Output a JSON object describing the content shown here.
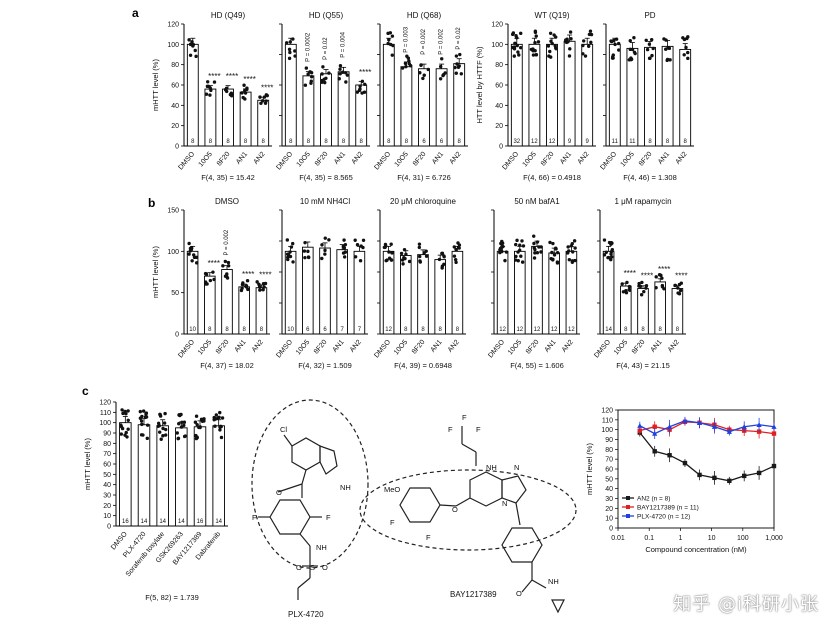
{
  "panel_labels": [
    "a",
    "b",
    "c"
  ],
  "structure_names": [
    "PLX-4720",
    "BAY1217389"
  ],
  "watermark": "知乎 @i科研小张",
  "chart_data": [
    {
      "type": "bar",
      "panel": "a",
      "title": "HD (Q49)",
      "ylabel": "mHTT level (%)",
      "ylim": [
        0,
        120
      ],
      "yticks": [
        0,
        20,
        40,
        60,
        80,
        100,
        120
      ],
      "categories": [
        "DMSO",
        "10O5",
        "8F20",
        "AN1",
        "AN2"
      ],
      "values": [
        100,
        56,
        56,
        53,
        45
      ],
      "n": [
        "8",
        "8",
        "8",
        "8",
        "8"
      ],
      "annotations": [
        "",
        "****",
        "****",
        "****",
        "****"
      ],
      "stat": "F(4, 35) = 15.42"
    },
    {
      "type": "bar",
      "panel": "a",
      "title": "HD (Q55)",
      "ylabel": "",
      "ylim": [
        0,
        120
      ],
      "yticks": [],
      "categories": [
        "DMSO",
        "10O5",
        "8F20",
        "AN1",
        "AN2"
      ],
      "values": [
        100,
        69,
        71,
        73,
        60
      ],
      "n": [
        "8",
        "8",
        "8",
        "8",
        "8"
      ],
      "annotations": [
        "",
        "P = 0.0002",
        "P = 0.02",
        "P = 0.004",
        "****"
      ],
      "stat": "F(4, 35) = 8.565"
    },
    {
      "type": "bar",
      "panel": "a",
      "title": "HD (Q68)",
      "ylabel": "",
      "ylim": [
        0,
        120
      ],
      "yticks": [],
      "categories": [
        "DMSO",
        "10O5",
        "8F20",
        "AN1",
        "AN2"
      ],
      "values": [
        100,
        78,
        76,
        76,
        81
      ],
      "n": [
        "8",
        "8",
        "6",
        "6",
        "8"
      ],
      "annotations": [
        "",
        "P = 0.003",
        "P = 0.002",
        "P = 0.002",
        "P = 0.02"
      ],
      "stat": "F(4, 31) = 6.726"
    },
    {
      "type": "bar",
      "panel": "a",
      "title": "WT (Q19)",
      "ylabel": "HTT level by HTTF (%)",
      "ylim": [
        0,
        120
      ],
      "yticks": [
        0,
        20,
        40,
        60,
        80,
        100,
        120
      ],
      "categories": [
        "DMSO",
        "10O5",
        "8F20",
        "AN1",
        "AN2"
      ],
      "values": [
        100,
        100,
        100,
        103,
        100
      ],
      "n": [
        "32",
        "12",
        "12",
        "9",
        "9"
      ],
      "annotations": [],
      "stat": "F(4, 66) = 0.4918"
    },
    {
      "type": "bar",
      "panel": "a",
      "title": "PD",
      "ylabel": "",
      "ylim": [
        0,
        120
      ],
      "yticks": [],
      "categories": [
        "DMSO",
        "10O5",
        "8F20",
        "AN1",
        "AN2"
      ],
      "values": [
        100,
        96,
        97,
        98,
        95
      ],
      "n": [
        "11",
        "11",
        "8",
        "8",
        "8"
      ],
      "annotations": [],
      "stat": "F(4, 46) = 1.308"
    },
    {
      "type": "bar",
      "panel": "b",
      "title": "DMSO",
      "ylabel": "mHTT level (%)",
      "ylim": [
        0,
        150
      ],
      "yticks": [
        0,
        50,
        100,
        150
      ],
      "categories": [
        "DMSO",
        "10O5",
        "8F20",
        "AN1",
        "AN2"
      ],
      "values": [
        100,
        70,
        78,
        57,
        56
      ],
      "n": [
        "10",
        "8",
        "8",
        "8",
        "8"
      ],
      "annotations": [
        "",
        "****",
        "P = 0.002",
        "****",
        "****"
      ],
      "stat": "F(4, 37) = 18.02"
    },
    {
      "type": "bar",
      "panel": "b",
      "title": "10 mM NH4Cl",
      "ylabel": "",
      "ylim": [
        0,
        150
      ],
      "yticks": [],
      "categories": [
        "DMSO",
        "10O5",
        "8F20",
        "AN1",
        "AN2"
      ],
      "values": [
        100,
        105,
        104,
        102,
        100
      ],
      "n": [
        "10",
        "6",
        "6",
        "7",
        "7"
      ],
      "annotations": [],
      "stat": "F(4, 32) = 1.509"
    },
    {
      "type": "bar",
      "panel": "b",
      "title": "20 μM chloroquine",
      "ylabel": "",
      "ylim": [
        0,
        150
      ],
      "yticks": [],
      "categories": [
        "DMSO",
        "10O5",
        "8F20",
        "AN1",
        "AN2"
      ],
      "values": [
        100,
        95,
        96,
        90,
        100
      ],
      "n": [
        "12",
        "8",
        "8",
        "8",
        "8"
      ],
      "annotations": [],
      "stat": "F(4, 39) = 0.6948"
    },
    {
      "type": "bar",
      "panel": "b",
      "title": "50 nM bafA1",
      "ylabel": "",
      "ylim": [
        0,
        150
      ],
      "yticks": [],
      "categories": [
        "DMSO",
        "10O5",
        "8F20",
        "AN1",
        "AN2"
      ],
      "values": [
        100,
        100,
        106,
        98,
        100
      ],
      "n": [
        "12",
        "12",
        "12",
        "12",
        "12"
      ],
      "annotations": [],
      "stat": "F(4, 55) = 1.606"
    },
    {
      "type": "bar",
      "panel": "b",
      "title": "1 μM rapamycin",
      "ylabel": "",
      "ylim": [
        0,
        150
      ],
      "yticks": [],
      "categories": [
        "DMSO",
        "10O5",
        "8F20",
        "AN1",
        "AN2"
      ],
      "values": [
        100,
        58,
        55,
        63,
        55
      ],
      "n": [
        "14",
        "8",
        "8",
        "8",
        "8"
      ],
      "annotations": [
        "",
        "****",
        "****",
        "****",
        "****"
      ],
      "stat": "F(4, 43) = 21.15"
    },
    {
      "type": "bar",
      "panel": "c",
      "title": "",
      "ylabel": "mHTT level (%)",
      "ylim": [
        0,
        120
      ],
      "yticks": [
        0,
        10,
        20,
        30,
        40,
        50,
        60,
        70,
        80,
        90,
        100,
        110,
        120
      ],
      "categories": [
        "DMSO",
        "PLX-4720",
        "Sorafenib tosylate",
        "GSK269263",
        "BAY1217389",
        "Dabrafenib"
      ],
      "values": [
        100,
        98,
        97,
        95,
        96,
        97
      ],
      "n": [
        "16",
        "14",
        "14",
        "14",
        "16",
        "14"
      ],
      "annotations": [],
      "stat": "F(5, 82) = 1.739"
    },
    {
      "type": "line",
      "panel": "c",
      "title": "",
      "xlabel": "Compound concentration (nM)",
      "ylabel": "mHTT level (%)",
      "xscale": "log",
      "xlim": [
        0.01,
        1000
      ],
      "ylim": [
        0,
        120
      ],
      "yticks": [
        0,
        10,
        20,
        30,
        40,
        50,
        60,
        70,
        80,
        90,
        100,
        110,
        120
      ],
      "xticks": [
        0.01,
        0.1,
        1,
        10,
        100,
        1000
      ],
      "xticklabels": [
        "0.01",
        "0.1",
        "1",
        "10",
        "100",
        "1,000"
      ],
      "x": [
        0.05,
        0.15,
        0.45,
        1.4,
        4.1,
        12.3,
        37,
        111,
        333,
        1000
      ],
      "series": [
        {
          "name": "AN2 (n = 8)",
          "color": "#1a1a1a",
          "marker": "square",
          "values": [
            97,
            78,
            74,
            66,
            54,
            51,
            48,
            53,
            56,
            63
          ]
        },
        {
          "name": "BAY1217389 (n = 11)",
          "color": "#e02020",
          "marker": "square",
          "values": [
            99,
            103,
            100,
            108,
            107,
            105,
            100,
            99,
            98,
            96
          ]
        },
        {
          "name": "PLX-4720 (n = 12)",
          "color": "#2040e0",
          "marker": "triangle",
          "values": [
            104,
            96,
            103,
            109,
            107,
            103,
            98,
            103,
            105,
            103
          ]
        }
      ],
      "legend": "bottom-left"
    }
  ]
}
